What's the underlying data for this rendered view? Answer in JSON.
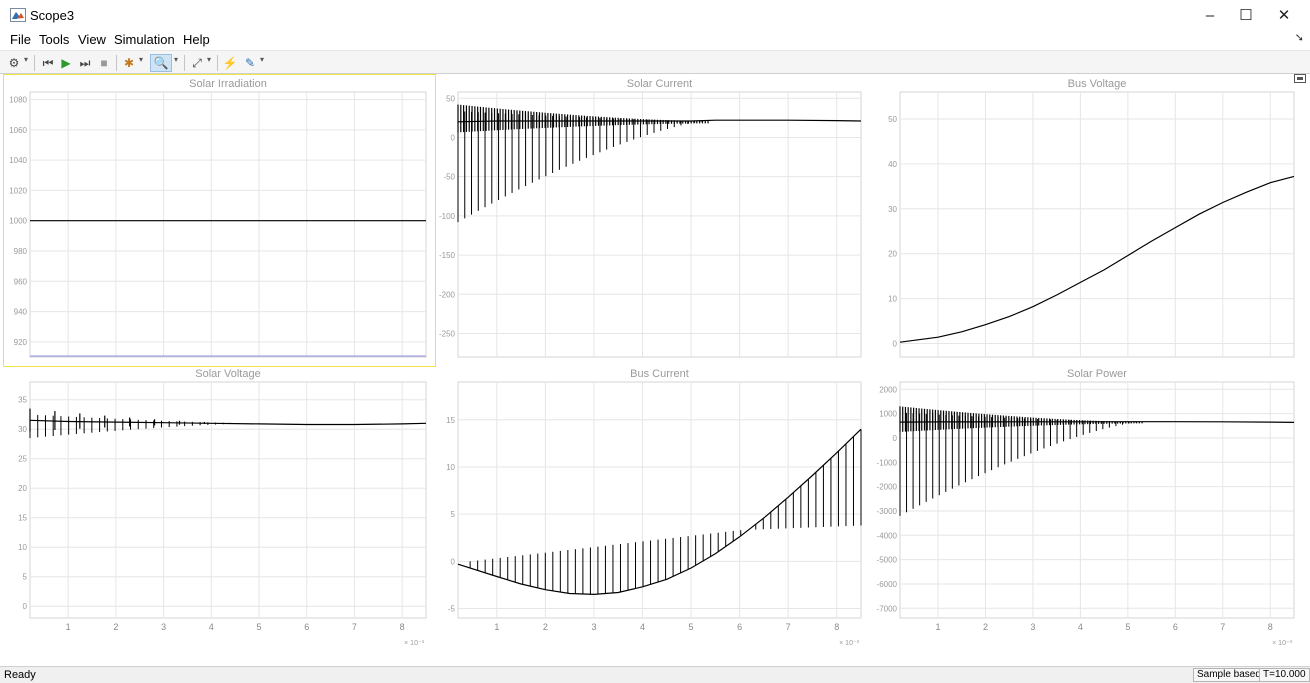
{
  "window": {
    "title": "Scope3",
    "controls": {
      "minimize": "–",
      "maximize": "☐",
      "close": "✕"
    }
  },
  "menu": [
    "File",
    "Tools",
    "View",
    "Simulation",
    "Help"
  ],
  "toolbar": [
    {
      "name": "configuration-icon",
      "glyph": "⚙",
      "caret": true
    },
    {
      "name": "step-back-icon",
      "glyph": "⏮",
      "caret": false
    },
    {
      "name": "run-icon",
      "glyph": "▶",
      "caret": false
    },
    {
      "name": "step-forward-icon",
      "glyph": "⏭",
      "caret": false
    },
    {
      "name": "stop-icon",
      "glyph": "■",
      "caret": false
    },
    {
      "name": "highlight-icon",
      "glyph": "✱",
      "caret": true
    },
    {
      "name": "zoom-icon",
      "glyph": "🔍",
      "caret": true,
      "selected": true
    },
    {
      "name": "scale-axes-icon",
      "glyph": "⤢",
      "caret": true
    },
    {
      "name": "triggers-icon",
      "glyph": "⚡",
      "caret": false
    },
    {
      "name": "cursor-measurements-icon",
      "glyph": "✎",
      "caret": true
    }
  ],
  "status": {
    "text": "Ready",
    "mode": "Sample based",
    "time": "T=10.000"
  },
  "chart_data": [
    {
      "type": "line",
      "title": "Solar Irradiation",
      "xlim": [
        0.0002,
        0.0085
      ],
      "ylim": [
        910,
        1085
      ],
      "yticks": [
        "920",
        "940",
        "960",
        "980",
        "1000",
        "1020",
        "1040",
        "1060",
        "1080"
      ],
      "xticks": [],
      "exponent_label": "",
      "grid": true,
      "series": [
        {
          "x": [
            0.0002,
            0.0085
          ],
          "y": [
            1000,
            1000
          ]
        }
      ],
      "baseline": 910
    },
    {
      "type": "line",
      "title": "Solar Current",
      "xlim": [
        0.0002,
        0.0085
      ],
      "ylim": [
        -280,
        58
      ],
      "yticks": [
        "-250",
        "-200",
        "-150",
        "-100",
        "-50",
        "0",
        "50"
      ],
      "xticks": [],
      "exponent_label": "",
      "grid": true,
      "series": [
        {
          "x": [
            0.0002,
            0.001,
            0.002,
            0.003,
            0.004,
            0.005,
            0.0055,
            0.006,
            0.007,
            0.008,
            0.0085
          ],
          "y": [
            20,
            21,
            21,
            21,
            21,
            21,
            22,
            22,
            22,
            21.5,
            21
          ]
        }
      ],
      "oscillation": {
        "t_start": 0.0002,
        "t_end": 0.00535,
        "high_start": 42,
        "low_start": -108,
        "converge": 21,
        "center_start": 18,
        "spikes": 38,
        "fill_spikes": 90
      }
    },
    {
      "type": "line",
      "title": "Bus Voltage",
      "xlim": [
        0.0002,
        0.0085
      ],
      "ylim": [
        -3,
        56
      ],
      "yticks": [
        "0",
        "10",
        "20",
        "30",
        "40",
        "50"
      ],
      "xticks": [],
      "exponent_label": "",
      "grid": true,
      "series": [
        {
          "x": [
            0.0002,
            0.001,
            0.0015,
            0.002,
            0.0025,
            0.003,
            0.0035,
            0.004,
            0.0045,
            0.005,
            0.0055,
            0.006,
            0.0065,
            0.007,
            0.0075,
            0.008,
            0.0085
          ],
          "y": [
            0.3,
            1.4,
            2.6,
            4.2,
            6.0,
            8.2,
            10.8,
            13.6,
            16.4,
            19.6,
            22.8,
            25.8,
            28.8,
            31.4,
            33.7,
            35.8,
            37.2
          ]
        }
      ]
    },
    {
      "type": "line",
      "title": "Solar Voltage",
      "xlim": [
        0.0002,
        0.0085
      ],
      "ylim": [
        -2,
        38
      ],
      "yticks": [
        "0",
        "5",
        "10",
        "15",
        "20",
        "25",
        "30",
        "35"
      ],
      "xticks": [
        "1",
        "2",
        "3",
        "4",
        "5",
        "6",
        "7",
        "8"
      ],
      "exponent_label": "× 10⁻³",
      "grid": true,
      "series": [
        {
          "x": [
            0.0002,
            0.001,
            0.002,
            0.003,
            0.004,
            0.005,
            0.006,
            0.007,
            0.008,
            0.0085
          ],
          "y": [
            31.5,
            31.3,
            31.2,
            31.1,
            31.0,
            30.9,
            30.8,
            30.8,
            30.9,
            31.0
          ]
        }
      ],
      "oscillation": {
        "t_start": 0.0002,
        "t_end": 0.0049,
        "high_start": 33.5,
        "low_start": 28.5,
        "converge": 31,
        "center_start": 31.2,
        "spikes": 30,
        "fill_spikes": 10
      }
    },
    {
      "type": "line",
      "title": "Bus Current",
      "xlim": [
        0.0002,
        0.0085
      ],
      "ylim": [
        -6,
        19
      ],
      "yticks": [
        "-5",
        "0",
        "5",
        "10",
        "15"
      ],
      "xticks": [
        "1",
        "2",
        "3",
        "4",
        "5",
        "6",
        "7",
        "8"
      ],
      "exponent_label": "× 10⁻³",
      "grid": true,
      "series": [
        {
          "x": [
            0.0002,
            0.001,
            0.0015,
            0.002,
            0.0025,
            0.003,
            0.0035,
            0.004,
            0.0045,
            0.005,
            0.0055,
            0.006,
            0.0065,
            0.007,
            0.0075,
            0.008,
            0.0085
          ],
          "y": [
            -0.3,
            -1.6,
            -2.4,
            -3.0,
            -3.4,
            -3.5,
            -3.3,
            -2.7,
            -1.9,
            -0.7,
            0.8,
            2.6,
            4.6,
            6.8,
            9.1,
            11.5,
            14.0
          ]
        }
      ],
      "spikes": {
        "t_start": 0.00045,
        "t_end": 0.0085,
        "count": 53,
        "top_start": 0.0,
        "top_turn_t": 0.006,
        "top_turn_y": 3.3,
        "top_end": 3.8
      }
    },
    {
      "type": "line",
      "title": "Solar Power",
      "xlim": [
        0.0002,
        0.0085
      ],
      "ylim": [
        -7400,
        2300
      ],
      "yticks": [
        "-7000",
        "-6000",
        "-5000",
        "-4000",
        "-3000",
        "-2000",
        "-1000",
        "0",
        "1000",
        "2000"
      ],
      "xticks": [
        "1",
        "2",
        "3",
        "4",
        "5",
        "6",
        "7",
        "8"
      ],
      "exponent_label": "× 10⁻³",
      "grid": true,
      "series": [
        {
          "x": [
            0.0002,
            0.001,
            0.002,
            0.003,
            0.004,
            0.005,
            0.006,
            0.007,
            0.008,
            0.0085
          ],
          "y": [
            650,
            660,
            660,
            665,
            665,
            670,
            670,
            665,
            650,
            640
          ]
        }
      ],
      "oscillation": {
        "t_start": 0.0002,
        "t_end": 0.0053,
        "high_start": 1300,
        "low_start": -3200,
        "converge": 660,
        "center_start": 600,
        "spikes": 38,
        "fill_spikes": 90
      }
    }
  ]
}
